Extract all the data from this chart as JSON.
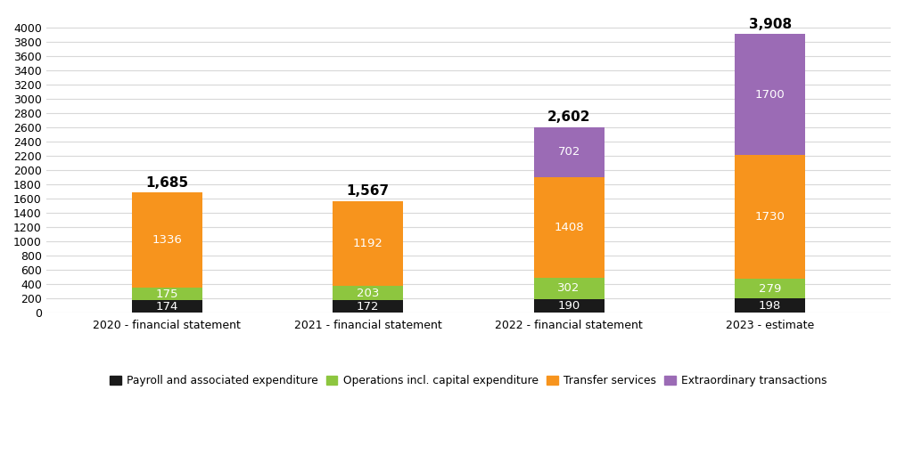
{
  "categories": [
    "2020 - financial statement",
    "2021 - financial statement",
    "2022 - financial statement",
    "2023 - estimate"
  ],
  "payroll": [
    174,
    172,
    190,
    198
  ],
  "operations": [
    175,
    203,
    302,
    279
  ],
  "transfer": [
    1336,
    1192,
    1408,
    1730
  ],
  "extraordinary": [
    0,
    0,
    702,
    1700
  ],
  "totals": [
    "1,685",
    "1,567",
    "2,602",
    "3,908"
  ],
  "colors": {
    "payroll": "#1a1a1a",
    "operations": "#8dc63f",
    "transfer": "#f7941d",
    "extraordinary": "#9b6bb5"
  },
  "ylim": [
    0,
    4200
  ],
  "yticks": [
    0,
    200,
    400,
    600,
    800,
    1000,
    1200,
    1400,
    1600,
    1800,
    2000,
    2200,
    2400,
    2600,
    2800,
    3000,
    3200,
    3400,
    3600,
    3800,
    4000
  ],
  "legend_labels": [
    "Payroll and associated expenditure",
    "Operations incl. capital expenditure",
    "Transfer services",
    "Extraordinary transactions"
  ],
  "background_color": "#ffffff",
  "bar_width": 0.35,
  "label_fontsize": 9.5,
  "total_fontsize": 11,
  "grid_color": "#d8d8d8"
}
